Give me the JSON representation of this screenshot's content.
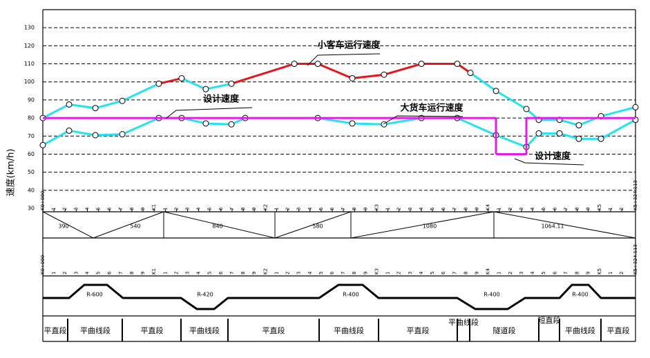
{
  "chart_data": {
    "type": "line",
    "y_label": "速度(km/h)",
    "ylim": [
      30,
      140
    ],
    "yticks": [
      30,
      40,
      50,
      60,
      70,
      80,
      90,
      100,
      110,
      120,
      130
    ],
    "grid": true,
    "xlim": [
      0,
      5324.113
    ],
    "xticks": [
      {
        "value": 0,
        "label": "K0+000"
      },
      {
        "value": 100,
        "label": "1"
      },
      {
        "value": 200,
        "label": "2"
      },
      {
        "value": 300,
        "label": "3"
      },
      {
        "value": 400,
        "label": "4"
      },
      {
        "value": 500,
        "label": "5"
      },
      {
        "value": 600,
        "label": "6"
      },
      {
        "value": 700,
        "label": "7"
      },
      {
        "value": 800,
        "label": "8"
      },
      {
        "value": 900,
        "label": "9"
      },
      {
        "value": 1000,
        "label": "K1"
      },
      {
        "value": 1100,
        "label": "1"
      },
      {
        "value": 1200,
        "label": "2"
      },
      {
        "value": 1300,
        "label": "3"
      },
      {
        "value": 1400,
        "label": "4"
      },
      {
        "value": 1500,
        "label": "5"
      },
      {
        "value": 1600,
        "label": "6"
      },
      {
        "value": 1700,
        "label": "7"
      },
      {
        "value": 1800,
        "label": "8"
      },
      {
        "value": 1900,
        "label": "9"
      },
      {
        "value": 2000,
        "label": "K2"
      },
      {
        "value": 2100,
        "label": "1"
      },
      {
        "value": 2200,
        "label": "2"
      },
      {
        "value": 2300,
        "label": "3"
      },
      {
        "value": 2400,
        "label": "4"
      },
      {
        "value": 2500,
        "label": "5"
      },
      {
        "value": 2600,
        "label": "6"
      },
      {
        "value": 2700,
        "label": "7"
      },
      {
        "value": 2800,
        "label": "8"
      },
      {
        "value": 2900,
        "label": "9"
      },
      {
        "value": 3000,
        "label": "K3"
      },
      {
        "value": 3100,
        "label": "1"
      },
      {
        "value": 3200,
        "label": "2"
      },
      {
        "value": 3300,
        "label": "3"
      },
      {
        "value": 3400,
        "label": "4"
      },
      {
        "value": 3500,
        "label": "5"
      },
      {
        "value": 3600,
        "label": "6"
      },
      {
        "value": 3700,
        "label": "7"
      },
      {
        "value": 3800,
        "label": "8"
      },
      {
        "value": 3900,
        "label": "9"
      },
      {
        "value": 4000,
        "label": "K4"
      },
      {
        "value": 4100,
        "label": "1"
      },
      {
        "value": 4200,
        "label": "2"
      },
      {
        "value": 4300,
        "label": "3"
      },
      {
        "value": 4400,
        "label": "4"
      },
      {
        "value": 4500,
        "label": "5"
      },
      {
        "value": 4600,
        "label": "6"
      },
      {
        "value": 4700,
        "label": "7"
      },
      {
        "value": 4800,
        "label": "8"
      },
      {
        "value": 4900,
        "label": "9"
      },
      {
        "value": 5000,
        "label": "K5"
      },
      {
        "value": 5100,
        "label": "1"
      },
      {
        "value": 5200,
        "label": "2"
      },
      {
        "value": 5324.113,
        "label": "K5+324.113"
      }
    ],
    "series": [
      {
        "name": "小客车运行速度",
        "color": "#22e3ee",
        "markers": true,
        "x": [
          0,
          236,
          472,
          714,
          1042,
          1247,
          1464,
          1694,
          2259,
          2470,
          2780,
          3065,
          3401,
          3723,
          3841,
          4071,
          4344,
          4455,
          4642,
          4815,
          5014,
          5324.113
        ],
        "values": [
          80,
          87.5,
          85.5,
          89.5,
          99,
          102,
          96,
          99,
          110,
          110,
          102,
          104,
          110,
          110,
          105,
          95,
          85,
          79,
          79,
          76,
          81,
          86
        ],
        "segment_colors": [
          "#22e3ee",
          "#22e3ee",
          "#22e3ee",
          "#22e3ee",
          "#e8141c",
          "#22e3ee",
          "#22e3ee",
          "#e8141c",
          "#e8141c",
          "#e8141c",
          "#e8141c",
          "#e8141c",
          "#e8141c",
          "#e8141c",
          "#22e3ee",
          "#22e3ee",
          "#22e3ee",
          "#22e3ee",
          "#22e3ee",
          "#22e3ee",
          "#22e3ee"
        ]
      },
      {
        "name": "大货车运行速度",
        "color": "#22e3ee",
        "markers": true,
        "x": [
          0,
          236,
          472,
          714,
          1042,
          1247,
          1464,
          1694,
          1818,
          2470,
          2780,
          3065,
          3401,
          3723,
          4071,
          4344,
          4455,
          4642,
          4815,
          5014,
          5324.113
        ],
        "values": [
          65,
          73,
          70.5,
          71,
          80,
          80,
          77,
          76.5,
          80,
          80,
          77,
          76.5,
          80,
          80,
          70.5,
          64,
          71.5,
          71.5,
          68.5,
          68.5,
          79
        ]
      },
      {
        "name": "设计速度",
        "color": "#e619e6",
        "markers": false,
        "x": [
          0,
          4071,
          4071,
          4344,
          4344,
          5324.113
        ],
        "values": [
          80,
          80,
          60,
          60,
          80,
          80
        ]
      }
    ],
    "annotations": [
      "小客车运行速度",
      "设计速度",
      "大货车运行速度",
      "设计速度"
    ]
  },
  "grade_lengths": [
    "390",
    "540",
    "840",
    "580",
    "1080",
    "1064.11"
  ],
  "curves": [
    "R-600",
    "R-420",
    "R-400",
    "R-400",
    "R-400"
  ],
  "sections": [
    "平直段",
    "平曲线段",
    "平直段",
    "平曲线段",
    "平直段",
    "平曲线段",
    "平直段",
    "平曲线段",
    "隧道段",
    "短直段",
    "平曲线段",
    "平直段"
  ]
}
